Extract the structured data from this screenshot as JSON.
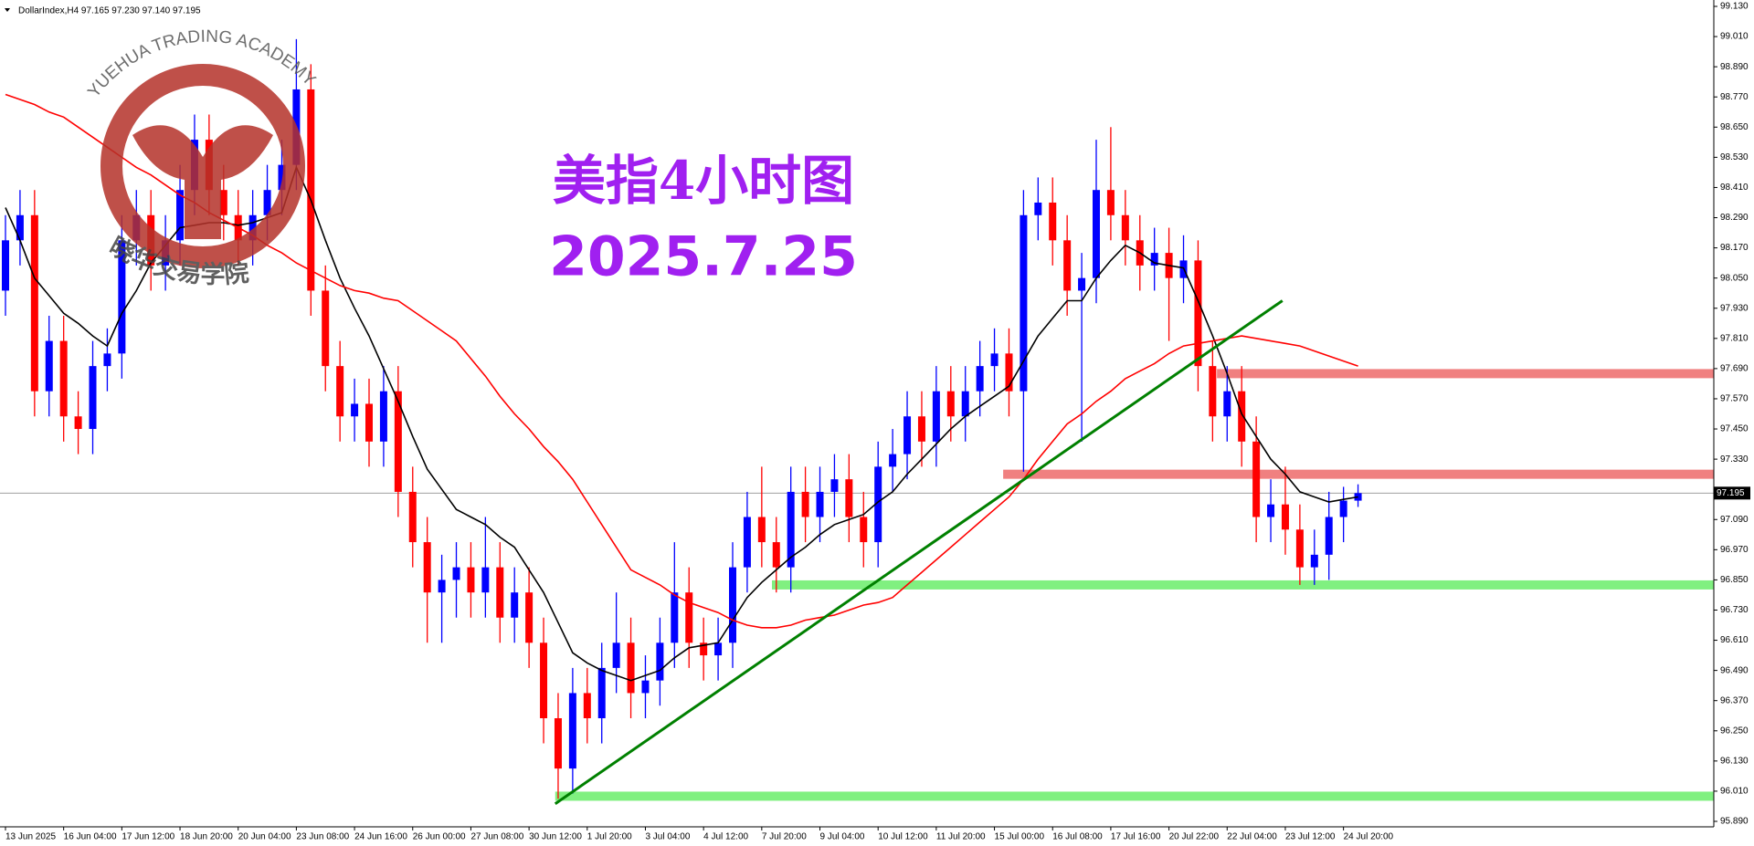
{
  "chart_data": {
    "type": "candlestick",
    "title": "DollarIndex,H4  97.165 97.230 97.140 97.195",
    "annotations": [
      "美指4小时图",
      "2025.7.25"
    ],
    "watermark": {
      "text_en": "YUEHUA TRADING ACADEMY",
      "text_cn": "晓华交易学院"
    },
    "bull_color": "#0000ff",
    "bear_color": "#ff0000",
    "categories": [
      "13 Jun 2025",
      null,
      null,
      null,
      "16 Jun 04:00",
      null,
      null,
      null,
      "17 Jun 12:00",
      null,
      null,
      null,
      "18 Jun 20:00",
      null,
      null,
      null,
      "20 Jun 04:00",
      null,
      null,
      null,
      "23 Jun 08:00",
      null,
      null,
      null,
      "24 Jun 16:00",
      null,
      null,
      null,
      "26 Jun 00:00",
      null,
      null,
      null,
      "27 Jun 08:00",
      null,
      null,
      null,
      "30 Jun 12:00",
      null,
      null,
      null,
      "1 Jul 20:00",
      null,
      null,
      null,
      "3 Jul 04:00",
      null,
      null,
      null,
      "4 Jul 12:00",
      null,
      null,
      null,
      "7 Jul 20:00",
      null,
      null,
      null,
      "9 Jul 04:00",
      null,
      null,
      null,
      "10 Jul 12:00",
      null,
      null,
      null,
      "11 Jul 20:00",
      null,
      null,
      null,
      "15 Jul 00:00",
      null,
      null,
      null,
      "16 Jul 08:00",
      null,
      null,
      null,
      "17 Jul 16:00",
      null,
      null,
      null,
      "20 Jul 22:00",
      null,
      null,
      null,
      "22 Jul 04:00",
      null,
      null,
      null,
      "23 Jul 12:00",
      null,
      null,
      null,
      "24 Jul 20:00",
      null
    ],
    "open": [
      98.0,
      98.2,
      98.3,
      97.6,
      97.8,
      97.5,
      97.45,
      97.7,
      97.75,
      98.2,
      98.3,
      98.1,
      98.2,
      98.4,
      98.6,
      98.4,
      98.3,
      98.2,
      98.3,
      98.4,
      98.5,
      98.8,
      98.0,
      97.7,
      97.5,
      97.55,
      97.4,
      97.6,
      97.2,
      97.0,
      96.8,
      96.85,
      96.9,
      96.8,
      96.9,
      96.7,
      96.8,
      96.6,
      96.3,
      96.1,
      96.4,
      96.3,
      96.5,
      96.6,
      96.4,
      96.45,
      96.6,
      96.8,
      96.6,
      96.55,
      96.6,
      96.9,
      97.1,
      97.0,
      96.9,
      97.2,
      97.1,
      97.2,
      97.25,
      97.1,
      97.0,
      97.3,
      97.35,
      97.5,
      97.4,
      97.6,
      97.5,
      97.6,
      97.7,
      97.75,
      97.6,
      98.3,
      98.35,
      98.2,
      98.0,
      98.05,
      98.4,
      98.3,
      98.2,
      98.1,
      98.15,
      98.05,
      98.12,
      97.7,
      97.5,
      97.6,
      97.4,
      97.1,
      97.15,
      97.05,
      96.9,
      96.95,
      97.1,
      97.165
    ],
    "high": [
      98.3,
      98.4,
      98.4,
      97.9,
      97.9,
      97.6,
      97.8,
      97.85,
      98.3,
      98.4,
      98.4,
      98.3,
      98.5,
      98.7,
      98.7,
      98.5,
      98.4,
      98.4,
      98.5,
      98.6,
      99.0,
      98.9,
      98.1,
      97.8,
      97.65,
      97.65,
      97.7,
      97.7,
      97.3,
      97.1,
      96.95,
      97.0,
      97.0,
      97.1,
      97.0,
      96.9,
      96.9,
      96.7,
      96.4,
      96.5,
      96.5,
      96.6,
      96.8,
      96.7,
      96.55,
      96.7,
      97.0,
      96.9,
      96.7,
      96.7,
      97.0,
      97.2,
      97.3,
      97.1,
      97.3,
      97.3,
      97.3,
      97.35,
      97.35,
      97.2,
      97.4,
      97.45,
      97.6,
      97.6,
      97.7,
      97.7,
      97.7,
      97.8,
      97.85,
      97.85,
      98.4,
      98.45,
      98.45,
      98.3,
      98.15,
      98.6,
      98.65,
      98.4,
      98.3,
      98.25,
      98.25,
      98.22,
      98.2,
      97.8,
      97.7,
      97.7,
      97.5,
      97.25,
      97.3,
      97.15,
      97.05,
      97.2,
      97.22,
      97.23
    ],
    "low": [
      97.9,
      98.1,
      97.5,
      97.5,
      97.4,
      97.35,
      97.35,
      97.6,
      97.65,
      98.1,
      98.0,
      98.0,
      98.1,
      98.3,
      98.3,
      98.2,
      98.1,
      98.1,
      98.2,
      98.3,
      98.4,
      97.9,
      97.6,
      97.4,
      97.4,
      97.3,
      97.3,
      97.1,
      96.9,
      96.6,
      96.6,
      96.7,
      96.7,
      96.7,
      96.6,
      96.6,
      96.5,
      96.2,
      95.98,
      96.0,
      96.2,
      96.2,
      96.4,
      96.3,
      96.3,
      96.35,
      96.5,
      96.5,
      96.45,
      96.45,
      96.5,
      96.8,
      96.9,
      96.8,
      96.8,
      97.0,
      97.0,
      97.1,
      97.0,
      96.9,
      96.9,
      97.2,
      97.25,
      97.3,
      97.3,
      97.4,
      97.4,
      97.5,
      97.6,
      97.5,
      97.28,
      98.2,
      98.1,
      97.9,
      97.4,
      97.95,
      98.2,
      98.1,
      98.0,
      98.0,
      97.8,
      97.95,
      97.6,
      97.4,
      97.4,
      97.3,
      97.0,
      97.0,
      96.95,
      96.83,
      96.83,
      96.85,
      97.0,
      97.14
    ],
    "close": [
      98.2,
      98.3,
      97.6,
      97.8,
      97.5,
      97.45,
      97.7,
      97.75,
      98.2,
      98.3,
      98.1,
      98.2,
      98.4,
      98.6,
      98.4,
      98.3,
      98.2,
      98.3,
      98.4,
      98.5,
      98.8,
      98.0,
      97.7,
      97.5,
      97.55,
      97.4,
      97.6,
      97.2,
      97.0,
      96.8,
      96.85,
      96.9,
      96.8,
      96.9,
      96.7,
      96.8,
      96.6,
      96.3,
      96.1,
      96.4,
      96.3,
      96.5,
      96.6,
      96.4,
      96.45,
      96.6,
      96.8,
      96.6,
      96.55,
      96.6,
      96.9,
      97.1,
      97.0,
      96.9,
      97.2,
      97.1,
      97.2,
      97.25,
      97.1,
      97.0,
      97.3,
      97.35,
      97.5,
      97.4,
      97.6,
      97.5,
      97.6,
      97.7,
      97.75,
      97.6,
      98.3,
      98.35,
      98.2,
      98.0,
      98.05,
      98.4,
      98.3,
      98.2,
      98.1,
      98.15,
      98.05,
      98.12,
      97.7,
      97.5,
      97.6,
      97.4,
      97.1,
      97.15,
      97.05,
      96.9,
      96.95,
      97.1,
      97.165,
      97.195
    ],
    "lines": [
      {
        "color": "#000000",
        "values": [
          98.33,
          98.2,
          98.05,
          97.98,
          97.91,
          97.87,
          97.82,
          97.78,
          97.91,
          98.0,
          98.11,
          98.18,
          98.25,
          98.26,
          98.27,
          98.27,
          98.26,
          98.27,
          98.29,
          98.31,
          98.49,
          98.36,
          98.2,
          98.05,
          97.93,
          97.82,
          97.69,
          97.56,
          97.42,
          97.29,
          97.21,
          97.13,
          97.1,
          97.07,
          97.02,
          96.98,
          96.89,
          96.8,
          96.68,
          96.56,
          96.52,
          96.49,
          96.47,
          96.45,
          96.47,
          96.49,
          96.54,
          96.58,
          96.59,
          96.6,
          96.69,
          96.78,
          96.84,
          96.89,
          96.94,
          96.98,
          97.03,
          97.07,
          97.09,
          97.11,
          97.16,
          97.2,
          97.27,
          97.33,
          97.39,
          97.45,
          97.5,
          97.54,
          97.58,
          97.62,
          97.72,
          97.82,
          97.89,
          97.96,
          97.96,
          98.05,
          98.12,
          98.18,
          98.15,
          98.11,
          98.1,
          98.09,
          97.96,
          97.82,
          97.67,
          97.51,
          97.42,
          97.33,
          97.27,
          97.2,
          97.18,
          97.16,
          97.17,
          97.18
        ]
      },
      {
        "color": "#ff0000",
        "values": [
          98.78,
          98.76,
          98.74,
          98.71,
          98.69,
          98.65,
          98.61,
          98.57,
          98.53,
          98.49,
          98.46,
          98.42,
          98.38,
          98.35,
          98.31,
          98.28,
          98.25,
          98.22,
          98.18,
          98.15,
          98.11,
          98.08,
          98.05,
          98.02,
          98.0,
          97.99,
          97.97,
          97.96,
          97.92,
          97.88,
          97.84,
          97.8,
          97.73,
          97.66,
          97.58,
          97.51,
          97.45,
          97.38,
          97.32,
          97.25,
          97.16,
          97.07,
          96.98,
          96.89,
          96.86,
          96.83,
          96.79,
          96.76,
          96.74,
          96.72,
          96.69,
          96.67,
          96.66,
          96.66,
          96.67,
          96.69,
          96.7,
          96.71,
          96.73,
          96.75,
          96.76,
          96.78,
          96.83,
          96.88,
          96.93,
          96.98,
          97.03,
          97.08,
          97.13,
          97.18,
          97.25,
          97.33,
          97.4,
          97.47,
          97.51,
          97.56,
          97.6,
          97.65,
          97.68,
          97.71,
          97.75,
          97.78,
          97.79,
          97.8,
          97.81,
          97.82,
          97.81,
          97.8,
          97.79,
          97.78,
          97.76,
          97.74,
          97.72,
          97.7
        ]
      }
    ],
    "levels": [
      {
        "value": 97.67,
        "color": "#f08080"
      },
      {
        "value": 97.27,
        "color": "#f08080"
      },
      {
        "value": 96.83,
        "color": "#80f080"
      },
      {
        "value": 95.99,
        "color": "#80f080"
      }
    ],
    "trendline": {
      "values": [
        95.96,
        97.96
      ],
      "color": "#008000"
    },
    "current_price": 97.195,
    "current_price_color": "#a0a0a0",
    "ylim": [
      95.89,
      99.13
    ],
    "yticks": [
      {
        "value": 95.89,
        "label": "95.890"
      },
      {
        "value": 96.01,
        "label": "96.010"
      },
      {
        "value": 96.13,
        "label": "96.130"
      },
      {
        "value": 96.25,
        "label": "96.250"
      },
      {
        "value": 96.37,
        "label": "96.370"
      },
      {
        "value": 96.49,
        "label": "96.490"
      },
      {
        "value": 96.61,
        "label": "96.610"
      },
      {
        "value": 96.73,
        "label": "96.730"
      },
      {
        "value": 96.85,
        "label": "96.850"
      },
      {
        "value": 96.97,
        "label": "96.970"
      },
      {
        "value": 97.09,
        "label": "97.090"
      },
      {
        "value": 97.33,
        "label": "97.330"
      },
      {
        "value": 97.45,
        "label": "97.450"
      },
      {
        "value": 97.57,
        "label": "97.570"
      },
      {
        "value": 97.69,
        "label": "97.690"
      },
      {
        "value": 97.81,
        "label": "97.810"
      },
      {
        "value": 97.93,
        "label": "97.930"
      },
      {
        "value": 98.05,
        "label": "98.050"
      },
      {
        "value": 98.17,
        "label": "98.170"
      },
      {
        "value": 98.29,
        "label": "98.290"
      },
      {
        "value": 98.41,
        "label": "98.410"
      },
      {
        "value": 98.53,
        "label": "98.530"
      },
      {
        "value": 98.65,
        "label": "98.650"
      },
      {
        "value": 98.77,
        "label": "98.770"
      },
      {
        "value": 98.89,
        "label": "98.890"
      },
      {
        "value": 99.01,
        "label": "99.010"
      },
      {
        "value": 99.13,
        "label": "99.130"
      }
    ]
  }
}
